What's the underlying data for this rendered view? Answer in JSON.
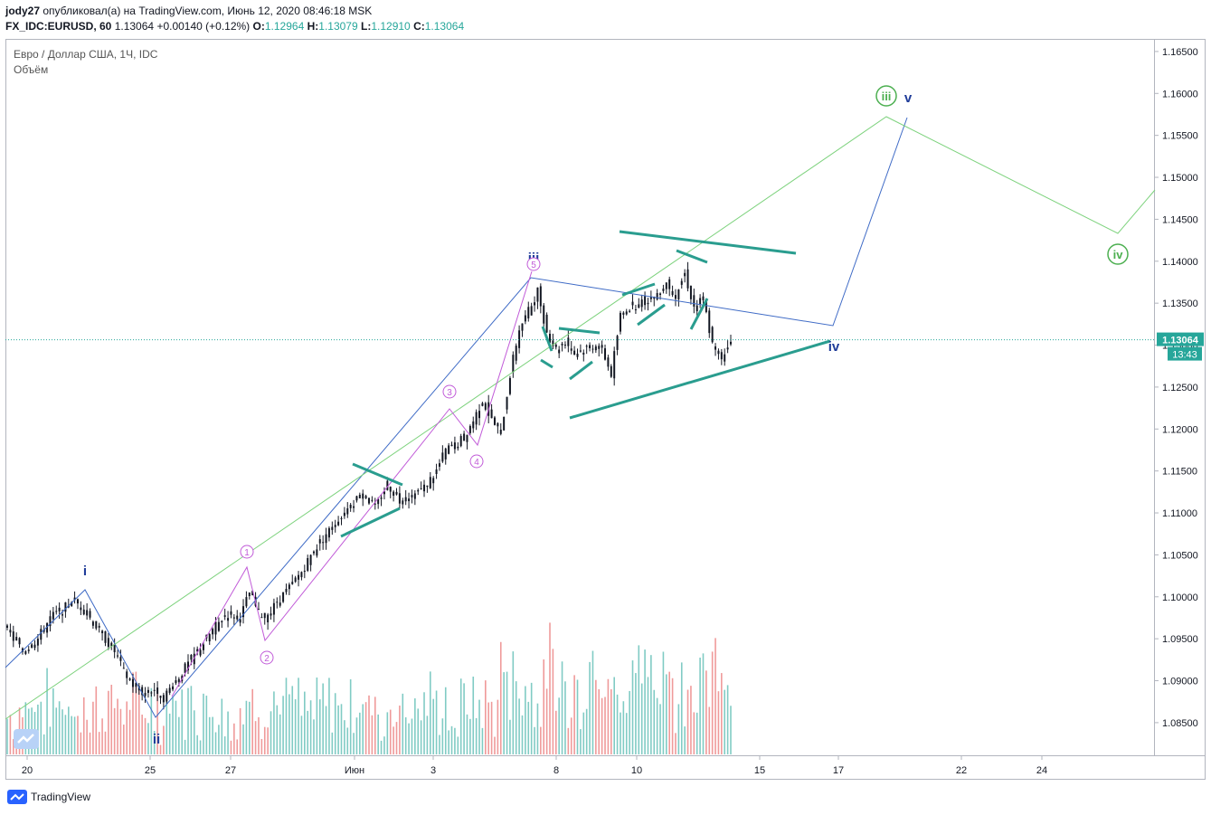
{
  "header": {
    "author": "jody27",
    "published_text": "опубликовал(а) на TradingView.com, Июнь 12, 2020 08:46:18 MSK",
    "symbol": "FX_IDC:EURUSD, 60",
    "last": "1.13064",
    "change": "+0.00140 (+0.12%)",
    "o_label": "O:",
    "o_value": "1.12964",
    "h_label": "H:",
    "h_value": "1.13079",
    "l_label": "L:",
    "l_value": "1.12910",
    "c_label": "C:",
    "c_value": "1.13064"
  },
  "legend": {
    "series_title": "Евро / Доллар США, 1Ч, IDC",
    "volume_title": "Объём"
  },
  "price_badge": {
    "value": "1.13064",
    "countdown": "13:43"
  },
  "footer": {
    "brand": "TradingView"
  },
  "colors": {
    "up": "#26a69a",
    "down": "#ef5350",
    "candle": "#131722",
    "wave_blue": "#3f6bc6",
    "wave_green": "#7dd27d",
    "wave_purple": "#c15bd8",
    "trendline": "#2a9d8f",
    "label_blue": "#1f3c99",
    "label_green": "#4caf50"
  },
  "chart_data": {
    "type": "line",
    "title": "Евро / Доллар США, 1Ч, IDC",
    "ylim": [
      1.081,
      1.1665
    ],
    "y_ticks": [
      "1.08500",
      "1.09000",
      "1.09500",
      "1.10000",
      "1.10500",
      "1.11000",
      "1.11500",
      "1.12000",
      "1.12500",
      "1.13000",
      "1.13500",
      "1.14000",
      "1.14500",
      "1.15000",
      "1.15500",
      "1.16000",
      "1.16500"
    ],
    "x_ticks": [
      "20",
      "25",
      "27",
      "Июн",
      "3",
      "8",
      "10",
      "15",
      "17",
      "22",
      "24"
    ],
    "series": [
      {
        "name": "",
        "points": [
          [
            0,
            1.096
          ],
          [
            5,
            1.0935
          ],
          [
            10,
            1.095
          ],
          [
            14,
            1.0975
          ],
          [
            18,
            1.0985
          ],
          [
            22,
            1.0995
          ],
          [
            25,
            1.0985
          ],
          [
            28,
            1.097
          ],
          [
            31,
            1.0955
          ],
          [
            35,
            1.0935
          ],
          [
            38,
            1.091
          ],
          [
            42,
            1.089
          ],
          [
            45,
            1.0885
          ],
          [
            48,
            1.089
          ],
          [
            51,
            1.088
          ],
          [
            55,
            1.09
          ],
          [
            58,
            1.0915
          ],
          [
            62,
            1.0935
          ],
          [
            65,
            1.095
          ],
          [
            68,
            1.0965
          ],
          [
            72,
            1.098
          ],
          [
            76,
            1.0975
          ],
          [
            79,
            1.1005
          ],
          [
            82,
            1.098
          ],
          [
            85,
            1.0975
          ],
          [
            88,
            1.0995
          ],
          [
            92,
            1.101
          ],
          [
            96,
            1.103
          ],
          [
            100,
            1.1055
          ],
          [
            104,
            1.1075
          ],
          [
            108,
            1.109
          ],
          [
            112,
            1.111
          ],
          [
            116,
            1.1125
          ],
          [
            120,
            1.1105
          ],
          [
            124,
            1.1135
          ],
          [
            128,
            1.1115
          ],
          [
            132,
            1.112
          ],
          [
            136,
            1.113
          ],
          [
            140,
            1.115
          ],
          [
            143,
            1.1175
          ],
          [
            146,
            1.118
          ],
          [
            149,
            1.119
          ],
          [
            152,
            1.121
          ],
          [
            155,
            1.1235
          ],
          [
            158,
            1.121
          ],
          [
            161,
            1.1195
          ],
          [
            164,
            1.1265
          ],
          [
            167,
            1.132
          ],
          [
            170,
            1.134
          ],
          [
            173,
            1.1365
          ],
          [
            176,
            1.1315
          ],
          [
            179,
            1.1295
          ],
          [
            182,
            1.1305
          ],
          [
            185,
            1.129
          ],
          [
            188,
            1.1295
          ],
          [
            191,
            1.13
          ],
          [
            194,
            1.1295
          ],
          [
            197,
            1.1265
          ],
          [
            200,
            1.1335
          ],
          [
            203,
            1.1345
          ],
          [
            206,
            1.135
          ],
          [
            209,
            1.1355
          ],
          [
            212,
            1.136
          ],
          [
            215,
            1.1375
          ],
          [
            218,
            1.136
          ],
          [
            221,
            1.1385
          ],
          [
            224,
            1.1345
          ],
          [
            227,
            1.1355
          ],
          [
            230,
            1.13
          ],
          [
            233,
            1.1285
          ],
          [
            236,
            1.1306
          ]
        ]
      }
    ],
    "volume_label": "Объём",
    "wave_labels": {
      "blue": [
        "i",
        "ii",
        "iii",
        "iv",
        "v"
      ],
      "green": [
        "iii",
        "iv"
      ],
      "purple": [
        "1",
        "2",
        "3",
        "4",
        "5"
      ]
    }
  }
}
